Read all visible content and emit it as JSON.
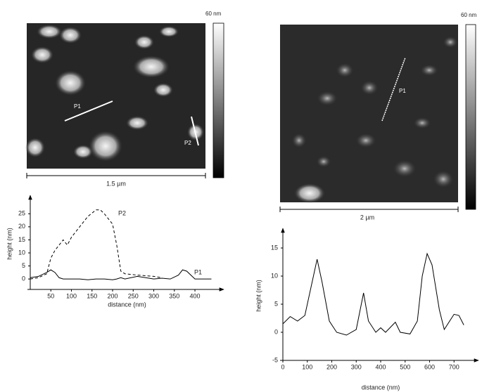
{
  "images": [
    {
      "scale_max": "60 nm",
      "scale_bar": "1.5 µm",
      "profiles": [
        "P1",
        "P2"
      ]
    },
    {
      "scale_max": "60 nm",
      "scale_bar": "2 µm",
      "profiles": [
        "P1"
      ]
    }
  ],
  "chart_data": [
    {
      "type": "line",
      "xlabel": "distance (nm)",
      "ylabel": "height (nm)",
      "x": [
        0,
        20,
        40,
        50,
        60,
        70,
        80,
        90,
        100,
        120,
        140,
        160,
        170,
        180,
        200,
        210,
        220,
        230,
        260,
        300,
        320,
        340,
        360,
        370,
        380,
        400,
        420,
        440
      ],
      "series": [
        {
          "name": "P1",
          "color": "#000000",
          "style": "solid",
          "values": [
            0.5,
            1,
            2.5,
            3.5,
            2.5,
            0.5,
            0,
            0,
            0,
            0,
            -0.3,
            0,
            0,
            0,
            -0.3,
            0,
            0.5,
            0,
            1,
            0,
            0.3,
            0,
            1.5,
            3.5,
            3,
            0,
            0,
            0
          ]
        },
        {
          "name": "P2",
          "color": "#000000",
          "style": "dashed",
          "values": [
            0,
            0.5,
            2,
            8,
            11,
            13,
            15,
            13,
            16,
            20,
            24,
            26.5,
            26.5,
            25,
            21,
            13,
            3,
            2,
            1.5,
            1,
            0.5,
            null,
            null,
            null,
            null,
            null,
            null,
            null
          ]
        }
      ],
      "xlim": [
        0,
        470
      ],
      "xticks": [
        50,
        100,
        150,
        200,
        250,
        300,
        350,
        400
      ],
      "ylim": [
        -4,
        31
      ],
      "yticks": [
        0,
        5,
        10,
        15,
        20,
        25
      ]
    },
    {
      "type": "line",
      "xlabel": "distance (nm)",
      "ylabel": "height (nm)",
      "x": [
        0,
        30,
        60,
        90,
        120,
        140,
        160,
        190,
        220,
        260,
        300,
        330,
        350,
        380,
        400,
        420,
        460,
        480,
        520,
        550,
        570,
        590,
        610,
        640,
        660,
        700,
        720,
        740
      ],
      "series": [
        {
          "name": null,
          "color": "#000000",
          "style": "solid",
          "values": [
            1.5,
            2.8,
            2.0,
            3,
            9,
            13,
            9,
            2,
            0,
            -0.5,
            0.5,
            7,
            2,
            0,
            0.8,
            0,
            1.8,
            0,
            -0.3,
            2,
            10,
            14,
            12,
            4,
            0.5,
            3.2,
            3,
            1.3
          ]
        }
      ],
      "xlim": [
        0,
        800
      ],
      "xticks": [
        0,
        100,
        200,
        300,
        400,
        500,
        600,
        700
      ],
      "ylim": [
        -5,
        18
      ],
      "yticks": [
        -5,
        0,
        5,
        10,
        15
      ]
    }
  ]
}
